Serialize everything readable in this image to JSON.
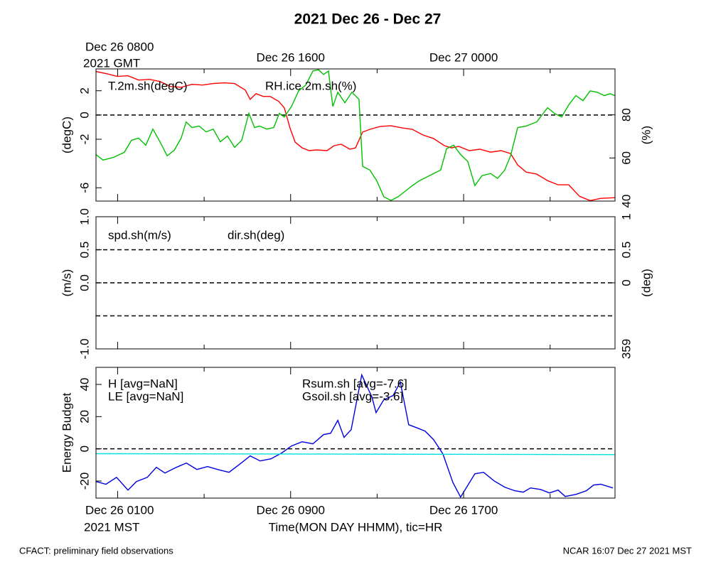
{
  "title": "2021 Dec 26 - Dec 27",
  "footer_left": "CFACT: preliminary field observations",
  "footer_right": "NCAR 16:07 Dec 27 2021 MST",
  "chart_data": [
    {
      "type": "line",
      "ylabel": "(degC)",
      "y2label": "(%)",
      "xlim": [
        0,
        24
      ],
      "ylim": [
        -7.1,
        3.8
      ],
      "yticks": [
        2,
        0,
        -2,
        -6
      ],
      "y2lim": [
        40,
        101.3
      ],
      "y2ticks": [
        40,
        60,
        80
      ],
      "hlines": [
        0
      ],
      "x2ticks": [
        {
          "value": 1,
          "label": "Dec 26 0800"
        },
        {
          "value": 9,
          "label": "Dec 26 1600"
        },
        {
          "value": 17,
          "label": "Dec 27 0000"
        }
      ],
      "x2tick_sublabel": "2021 GMT",
      "series": [
        {
          "name": "T.2m.sh(degC)",
          "color": "#ff0000",
          "x": [
            0,
            0.49,
            0.99,
            1.48,
            1.97,
            2.47,
            2.96,
            3.45,
            3.94,
            4.44,
            4.93,
            5.42,
            5.92,
            6.41,
            6.9,
            7.13,
            7.4,
            7.73,
            8.05,
            8.45,
            8.71,
            8.97,
            9.21,
            9.53,
            9.86,
            10.19,
            10.68,
            11.01,
            11.34,
            11.74,
            12.0,
            12.33,
            12.66,
            13.15,
            13.64,
            14.14,
            14.63,
            15.12,
            15.61,
            16.11,
            16.44,
            16.77,
            17.26,
            17.75,
            18.25,
            18.74,
            19.17,
            19.5,
            19.89,
            20.38,
            20.88,
            21.37,
            21.86,
            22.36,
            22.85,
            23.34,
            24.0
          ],
          "values": [
            3.59,
            3.41,
            3.18,
            3.24,
            2.88,
            2.94,
            2.76,
            2.35,
            2.29,
            2.53,
            2.47,
            2.59,
            2.65,
            2.59,
            2.06,
            1.29,
            1.76,
            1.53,
            1.53,
            1.12,
            0.59,
            -1.06,
            -2.24,
            -2.71,
            -2.94,
            -2.88,
            -2.94,
            -2.53,
            -2.41,
            -2.82,
            -2.71,
            -1.41,
            -1.18,
            -0.94,
            -0.88,
            -1.06,
            -1.18,
            -1.65,
            -1.94,
            -2.53,
            -2.71,
            -2.59,
            -2.94,
            -2.82,
            -3.06,
            -2.94,
            -3.18,
            -4.12,
            -4.71,
            -4.88,
            -5.41,
            -5.76,
            -5.76,
            -6.71,
            -7.06,
            -6.88,
            -6.82
          ]
        },
        {
          "name": "RH.ice.2m.sh(%)",
          "color": "#00c000",
          "axis": "y2",
          "x": [
            0,
            0.33,
            0.82,
            1.31,
            1.64,
            1.97,
            2.3,
            2.63,
            2.96,
            3.29,
            3.62,
            3.94,
            4.17,
            4.44,
            4.77,
            5.09,
            5.42,
            5.75,
            6.08,
            6.41,
            6.74,
            7.07,
            7.33,
            7.56,
            7.89,
            8.22,
            8.48,
            8.71,
            9.04,
            9.37,
            9.7,
            10.03,
            10.29,
            10.52,
            10.75,
            10.95,
            11.18,
            11.51,
            11.83,
            12.16,
            12.33,
            12.66,
            12.98,
            13.31,
            13.64,
            13.97,
            14.3,
            14.63,
            14.96,
            15.29,
            15.61,
            15.94,
            16.21,
            16.54,
            16.86,
            17.19,
            17.52,
            17.85,
            18.25,
            18.57,
            18.9,
            19.17,
            19.5,
            19.89,
            20.38,
            20.88,
            21.2,
            21.53,
            21.86,
            22.19,
            22.52,
            22.85,
            23.18,
            23.5,
            23.77,
            24.0
          ],
          "values": [
            61.6,
            59.0,
            60.3,
            62.6,
            68.2,
            69.2,
            65.9,
            73.4,
            67.5,
            61.0,
            63.6,
            69.2,
            76.7,
            74.1,
            74.8,
            72.1,
            73.4,
            67.5,
            70.2,
            64.9,
            68.2,
            80.7,
            74.1,
            74.8,
            73.4,
            74.1,
            80.7,
            79.0,
            83.9,
            91.1,
            93.8,
            100.3,
            100.9,
            98.7,
            100.3,
            83.9,
            90.5,
            85.6,
            90.5,
            87.2,
            56.1,
            54.4,
            49.5,
            42.0,
            40.3,
            42.0,
            44.6,
            47.2,
            49.5,
            51.1,
            52.8,
            54.4,
            64.3,
            65.9,
            61.6,
            58.4,
            47.2,
            51.8,
            52.8,
            50.5,
            54.4,
            61.0,
            74.1,
            74.8,
            76.7,
            83.3,
            80.7,
            79.0,
            84.6,
            88.9,
            86.6,
            91.1,
            90.5,
            88.9,
            89.8,
            88.9
          ]
        }
      ]
    },
    {
      "type": "line",
      "ylabel": "(m/s)",
      "y2label": "(deg)",
      "xlim": [
        0,
        24
      ],
      "ylim": [
        -1,
        1
      ],
      "yticks": [
        {
          "value": 1,
          "label": "1.0"
        },
        0.5,
        {
          "value": 0,
          "label": "0.0"
        },
        {
          "value": -1,
          "label": "-1.0"
        }
      ],
      "y2lim": [
        -1,
        1
      ],
      "y2ticks": [
        1,
        0.5,
        0,
        {
          "value": -1,
          "label": "359"
        }
      ],
      "hlines": [
        0.5,
        0,
        -0.5
      ],
      "series": [
        {
          "name": "spd.sh(m/s)",
          "color": "#ff0000",
          "x": [],
          "values": []
        },
        {
          "name": "dir.sh(deg)",
          "color": "#00c000",
          "axis": "y2",
          "x": [],
          "values": []
        }
      ]
    },
    {
      "type": "line",
      "ylabel": "Energy Budget",
      "xlim": [
        0,
        24
      ],
      "ylim": [
        -30.6,
        50.6
      ],
      "yticks": [
        40,
        20,
        0,
        -20
      ],
      "hlines": [
        0
      ],
      "xticks": [
        {
          "value": 1,
          "label": "Dec 26 0100"
        },
        {
          "value": 9,
          "label": "Dec 26 0900"
        },
        {
          "value": 17,
          "label": "Dec 26 1700"
        }
      ],
      "minor_xticks": [
        5,
        13,
        21
      ],
      "xtick_sublabel": "2021 MST",
      "xlabel": "Time(MON DAY HHMM), tic=HR",
      "series": [
        {
          "name": "H [avg=NaN]",
          "color": "#ff0000",
          "x": [],
          "values": []
        },
        {
          "name": "LE [avg=NaN]",
          "color": "#00c000",
          "x": [],
          "values": []
        },
        {
          "name": "Rsum.sh [avg=-7.6]",
          "color": "#0000e0",
          "x": [
            0,
            0.46,
            0.95,
            1.48,
            1.87,
            2.37,
            2.79,
            3.19,
            3.65,
            4.18,
            4.67,
            5.16,
            5.62,
            6.15,
            6.67,
            7.13,
            7.59,
            8.09,
            8.58,
            9.04,
            9.53,
            10.03,
            10.52,
            10.85,
            11.18,
            11.47,
            11.8,
            12.29,
            12.76,
            12.95,
            13.31,
            13.74,
            14.07,
            14.46,
            14.89,
            15.22,
            15.61,
            16.04,
            16.5,
            16.86,
            17.52,
            17.92,
            18.41,
            18.9,
            19.36,
            19.76,
            20.09,
            20.55,
            20.97,
            21.37,
            21.7,
            22.19,
            22.68,
            23.01,
            23.34,
            23.9
          ],
          "values": [
            -20.3,
            -22,
            -17.7,
            -25.6,
            -20.3,
            -17.7,
            -11.5,
            -15,
            -11.9,
            -8.8,
            -12.8,
            -11,
            -12.8,
            -14.6,
            -9.3,
            -4.4,
            -7.5,
            -6.2,
            -2.6,
            1.8,
            4.4,
            3.1,
            8.8,
            9.7,
            17.7,
            7.1,
            11.9,
            45.9,
            32.2,
            22.5,
            30.5,
            33.1,
            41.5,
            15,
            12.8,
            11,
            5.7,
            -3.1,
            -20.8,
            -30,
            -15.5,
            -14.6,
            -19.9,
            -23.8,
            -26,
            -26.9,
            -24.3,
            -25.2,
            -27.4,
            -25.6,
            -29.6,
            -28.3,
            -26,
            -22.5,
            -22,
            -24.3
          ]
        },
        {
          "name": "Gsoil.sh [avg=-3.6]",
          "color": "#00e0e0",
          "x": [
            0,
            12,
            24
          ],
          "values": [
            -3.0,
            -3.3,
            -3.6
          ]
        }
      ]
    }
  ]
}
